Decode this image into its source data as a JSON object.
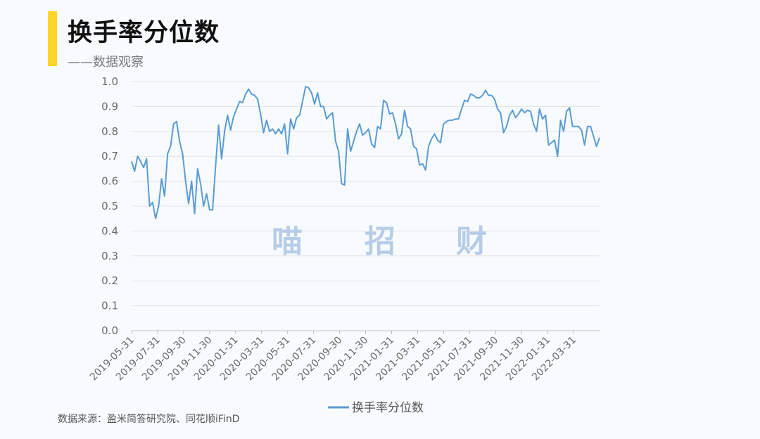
{
  "header": {
    "title": "换手率分位数",
    "subtitle": "——数据观察"
  },
  "watermark": [
    "喵",
    "招",
    "财"
  ],
  "source": "数据来源：盈米简答研究院、同花顺iFinD",
  "colors": {
    "accent": "#ffd42a",
    "line": "#5b9bd5",
    "grid": "#e3e3e3"
  },
  "chart_data": {
    "type": "line",
    "title": "",
    "xlabel": "",
    "ylabel": "",
    "ylim": [
      0,
      1.0
    ],
    "yticks": [
      "0.0",
      "0.1",
      "0.2",
      "0.3",
      "0.4",
      "0.5",
      "0.6",
      "0.7",
      "0.8",
      "0.9",
      "1.0"
    ],
    "xticks": [
      "2019-05-31",
      "2019-07-31",
      "2019-09-30",
      "2019-11-30",
      "2020-01-31",
      "2020-03-31",
      "2020-05-31",
      "2020-07-31",
      "2020-09-30",
      "2020-11-30",
      "2021-01-31",
      "2021-03-31",
      "2021-05-31",
      "2021-07-31",
      "2021-09-30",
      "2021-11-30",
      "2022-01-31",
      "2022-03-31"
    ],
    "grid": true,
    "legend_position": "bottom",
    "series": [
      {
        "name": "换手率分位数",
        "values": [
          0.68,
          0.64,
          0.7,
          0.68,
          0.655,
          0.69,
          0.5,
          0.515,
          0.45,
          0.5,
          0.61,
          0.54,
          0.71,
          0.74,
          0.83,
          0.84,
          0.76,
          0.71,
          0.6,
          0.51,
          0.6,
          0.47,
          0.65,
          0.59,
          0.5,
          0.55,
          0.485,
          0.485,
          0.66,
          0.825,
          0.69,
          0.8,
          0.865,
          0.805,
          0.86,
          0.89,
          0.92,
          0.915,
          0.95,
          0.97,
          0.95,
          0.945,
          0.93,
          0.87,
          0.795,
          0.845,
          0.8,
          0.81,
          0.79,
          0.81,
          0.79,
          0.83,
          0.71,
          0.85,
          0.81,
          0.855,
          0.865,
          0.92,
          0.98,
          0.975,
          0.955,
          0.91,
          0.955,
          0.9,
          0.9,
          0.85,
          0.865,
          0.875,
          0.76,
          0.72,
          0.59,
          0.585,
          0.81,
          0.72,
          0.76,
          0.8,
          0.83,
          0.785,
          0.795,
          0.81,
          0.75,
          0.735,
          0.82,
          0.81,
          0.925,
          0.915,
          0.87,
          0.875,
          0.83,
          0.77,
          0.79,
          0.885,
          0.82,
          0.81,
          0.74,
          0.73,
          0.665,
          0.67,
          0.645,
          0.74,
          0.77,
          0.79,
          0.765,
          0.755,
          0.83,
          0.84,
          0.845,
          0.845,
          0.85,
          0.85,
          0.89,
          0.925,
          0.92,
          0.95,
          0.945,
          0.935,
          0.935,
          0.945,
          0.965,
          0.945,
          0.945,
          0.93,
          0.89,
          0.875,
          0.795,
          0.82,
          0.865,
          0.885,
          0.855,
          0.87,
          0.89,
          0.875,
          0.885,
          0.88,
          0.83,
          0.8,
          0.89,
          0.85,
          0.865,
          0.745,
          0.755,
          0.765,
          0.7,
          0.845,
          0.8,
          0.88,
          0.895,
          0.82,
          0.82,
          0.82,
          0.805,
          0.745,
          0.82,
          0.82,
          0.78,
          0.74,
          0.775
        ]
      }
    ]
  }
}
